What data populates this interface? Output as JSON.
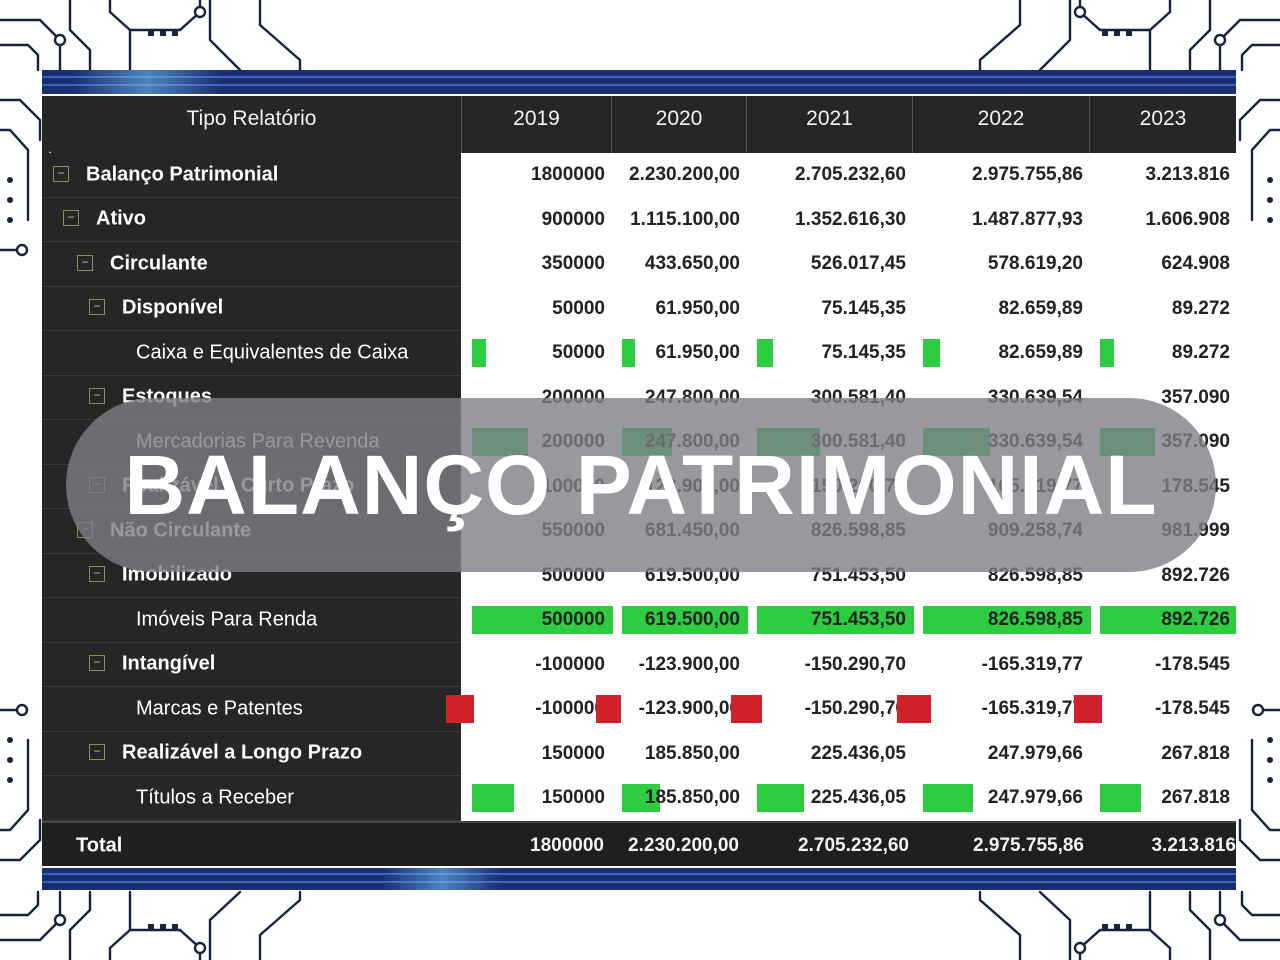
{
  "grid": {
    "header": {
      "label": "Tipo Relatório",
      "years": [
        "2019",
        "2020",
        "2021",
        "2022",
        "2023"
      ]
    },
    "rows": [
      {
        "label": "Balanço Patrimonial",
        "level": 0,
        "expandable": true,
        "bold": true,
        "values": [
          "1800000",
          "2.230.200,00",
          "2.705.232,60",
          "2.975.755,86",
          "3.213.816"
        ]
      },
      {
        "label": "Ativo",
        "level": 1,
        "expandable": true,
        "bold": true,
        "values": [
          "900000",
          "1.115.100,00",
          "1.352.616,30",
          "1.487.877,93",
          "1.606.908"
        ]
      },
      {
        "label": "Circulante",
        "level": 2,
        "expandable": true,
        "bold": true,
        "values": [
          "350000",
          "433.650,00",
          "526.017,45",
          "578.619,20",
          "624.908"
        ]
      },
      {
        "label": "Disponível",
        "level": 3,
        "expandable": true,
        "bold": true,
        "values": [
          "50000",
          "61.950,00",
          "75.145,35",
          "82.659,89",
          "89.272"
        ]
      },
      {
        "label": "Caixa e Equivalentes de Caixa",
        "level": 4,
        "expandable": false,
        "bold": false,
        "bar_fraction": 0.1,
        "values": [
          "50000",
          "61.950,00",
          "75.145,35",
          "82.659,89",
          "89.272"
        ]
      },
      {
        "label": "Estoques",
        "level": 3,
        "expandable": true,
        "bold": true,
        "values": [
          "200000",
          "247.800,00",
          "300.581,40",
          "330.639,54",
          "357.090"
        ]
      },
      {
        "label": "Mercadorias Para Revenda",
        "level": 4,
        "expandable": false,
        "bold": false,
        "bar_fraction": 0.4,
        "values": [
          "200000",
          "247.800,00",
          "300.581,40",
          "330.639,54",
          "357.090"
        ]
      },
      {
        "label": "Realizável a Curto Prazo",
        "level": 3,
        "expandable": true,
        "bold": true,
        "values": [
          "100000",
          "123.900,00",
          "150.290,70",
          "165.319,77",
          "178.545"
        ]
      },
      {
        "label": "Não Circulante",
        "level": 2,
        "expandable": true,
        "bold": true,
        "values": [
          "550000",
          "681.450,00",
          "826.598,85",
          "909.258,74",
          "981.999"
        ]
      },
      {
        "label": "Imobilizado",
        "level": 3,
        "expandable": true,
        "bold": true,
        "values": [
          "500000",
          "619.500,00",
          "751.453,50",
          "826.598,85",
          "892.726"
        ]
      },
      {
        "label": "Imóveis Para Renda",
        "level": 4,
        "expandable": false,
        "bold": false,
        "bar_fraction": 1.0,
        "values": [
          "500000",
          "619.500,00",
          "751.453,50",
          "826.598,85",
          "892.726"
        ]
      },
      {
        "label": "Intangível",
        "level": 3,
        "expandable": true,
        "bold": true,
        "values": [
          "-100000",
          "-123.900,00",
          "-150.290,70",
          "-165.319,77",
          "-178.545"
        ]
      },
      {
        "label": "Marcas e Patentes",
        "level": 4,
        "expandable": false,
        "bold": false,
        "bar_fraction": -0.2,
        "values": [
          "-100000",
          "-123.900,00",
          "-150.290,70",
          "-165.319,77",
          "-178.545"
        ]
      },
      {
        "label": "Realizável a Longo Prazo",
        "level": 3,
        "expandable": true,
        "bold": true,
        "values": [
          "150000",
          "185.850,00",
          "225.436,05",
          "247.979,66",
          "267.818"
        ]
      },
      {
        "label": "Títulos a Receber",
        "level": 4,
        "expandable": false,
        "bold": false,
        "bar_fraction": 0.3,
        "values": [
          "150000",
          "185.850,00",
          "225.436,05",
          "247.979,66",
          "267.818"
        ]
      }
    ],
    "total": {
      "label": "Total",
      "values": [
        "1800000",
        "2.230.200,00",
        "2.705.232,60",
        "2.975.755,86",
        "3.213.816"
      ]
    }
  },
  "overlay_title": "BALANÇO PATRIMONIAL",
  "colors": {
    "positive_bar": "#2ecc40",
    "negative_bar": "#d0202a",
    "band": "#1a2f6e",
    "grid_dark": "#262626"
  }
}
